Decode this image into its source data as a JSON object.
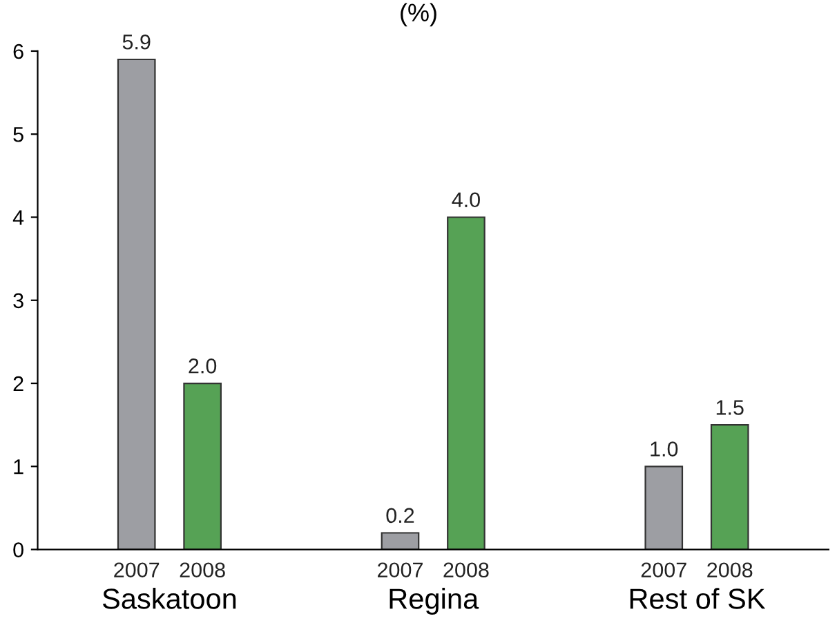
{
  "chart_data": {
    "type": "bar",
    "title": "(%)",
    "categories": [
      "Saskatoon",
      "Regina",
      "Rest of SK"
    ],
    "series": [
      {
        "name": "2007",
        "color": "#9d9ea3",
        "values": [
          5.9,
          0.2,
          1.0
        ],
        "value_labels": [
          "5.9",
          "0.2",
          "1.0"
        ]
      },
      {
        "name": "2008",
        "color": "#56a255",
        "values": [
          2.0,
          4.0,
          1.5
        ],
        "value_labels": [
          "2.0",
          "4.0",
          "1.5"
        ]
      }
    ],
    "ylim": [
      0,
      6
    ],
    "yticks": [
      0,
      1,
      2,
      3,
      4,
      5,
      6
    ],
    "grid": false,
    "legend": false
  }
}
